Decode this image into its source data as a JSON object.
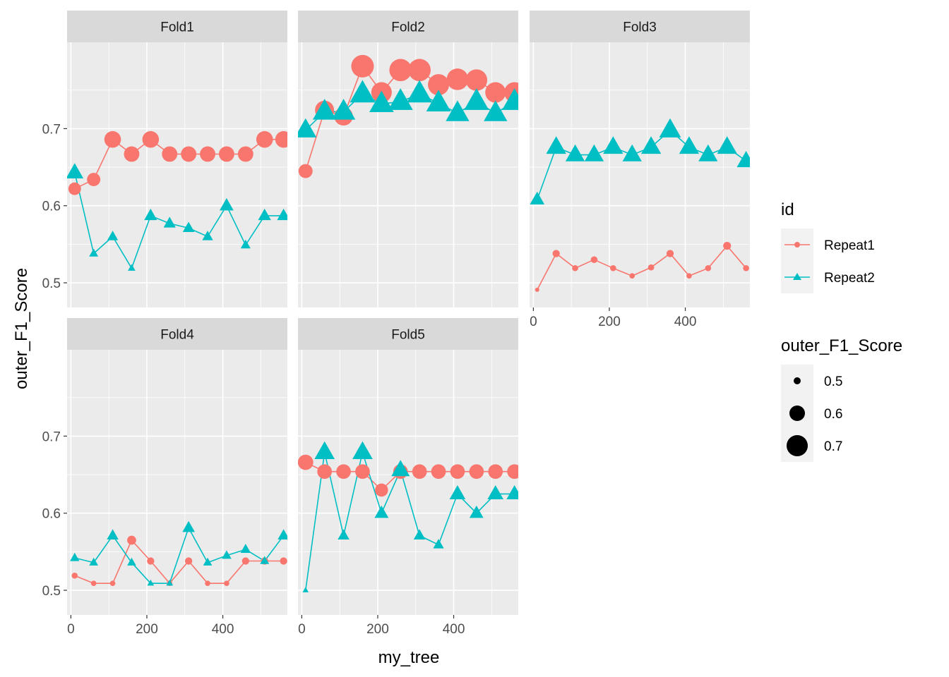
{
  "chart_data": {
    "type": "line",
    "xlabel": "my_tree",
    "ylabel": "outer_F1_Score",
    "xlim": [
      -10,
      570
    ],
    "ylim": [
      0.468,
      0.812
    ],
    "x_ticks": [
      0,
      200,
      400
    ],
    "y_ticks": [
      0.5,
      0.6,
      0.7
    ],
    "x_tick_labels": [
      "0",
      "200",
      "400"
    ],
    "y_tick_labels": [
      "0.5",
      "0.6",
      "0.7"
    ],
    "x": [
      10,
      60,
      110,
      160,
      210,
      260,
      310,
      360,
      410,
      460,
      510,
      560
    ],
    "grid": true,
    "legend": {
      "position": "right",
      "color_title": "id",
      "size_title": "outer_F1_Score",
      "size_breaks": [
        0.5,
        0.6,
        0.7
      ],
      "size_labels": [
        "0.5",
        "0.6",
        "0.7"
      ]
    },
    "series_styles": [
      {
        "name": "Repeat1",
        "color": "#F8766D",
        "shape": "circle"
      },
      {
        "name": "Repeat2",
        "color": "#00BFC4",
        "shape": "triangle"
      }
    ],
    "panels": [
      {
        "label": "Fold1",
        "series": [
          {
            "name": "Repeat1",
            "values": [
              0.622,
              0.634,
              0.686,
              0.667,
              0.686,
              0.667,
              0.667,
              0.667,
              0.667,
              0.667,
              0.686,
              0.686
            ]
          },
          {
            "name": "Repeat2",
            "values": [
              0.643,
              0.538,
              0.56,
              0.519,
              0.587,
              0.577,
              0.571,
              0.56,
              0.6,
              0.549,
              0.587,
              0.587
            ]
          }
        ]
      },
      {
        "label": "Fold2",
        "series": [
          {
            "name": "Repeat1",
            "values": [
              0.645,
              0.724,
              0.716,
              0.781,
              0.747,
              0.776,
              0.776,
              0.757,
              0.764,
              0.763,
              0.747,
              0.747
            ]
          },
          {
            "name": "Repeat2",
            "values": [
              0.698,
              0.722,
              0.722,
              0.745,
              0.732,
              0.735,
              0.745,
              0.733,
              0.72,
              0.735,
              0.72,
              0.735
            ]
          }
        ]
      },
      {
        "label": "Fold3",
        "series": [
          {
            "name": "Repeat1",
            "values": [
              0.491,
              0.538,
              0.519,
              0.53,
              0.519,
              0.509,
              0.52,
              0.538,
              0.509,
              0.519,
              0.548,
              0.519
            ]
          },
          {
            "name": "Repeat2",
            "values": [
              0.608,
              0.676,
              0.666,
              0.666,
              0.676,
              0.666,
              0.676,
              0.698,
              0.676,
              0.666,
              0.676,
              0.658
            ]
          }
        ]
      },
      {
        "label": "Fold4",
        "series": [
          {
            "name": "Repeat1",
            "values": [
              0.519,
              0.509,
              0.509,
              0.565,
              0.538,
              0.509,
              0.538,
              0.509,
              0.509,
              0.538,
              0.538,
              0.538
            ]
          },
          {
            "name": "Repeat2",
            "values": [
              0.542,
              0.536,
              0.571,
              0.536,
              0.509,
              0.509,
              0.581,
              0.536,
              0.545,
              0.553,
              0.538,
              0.571
            ]
          }
        ]
      },
      {
        "label": "Fold5",
        "series": [
          {
            "name": "Repeat1",
            "values": [
              0.666,
              0.654,
              0.654,
              0.654,
              0.63,
              0.654,
              0.654,
              0.654,
              0.654,
              0.654,
              0.654,
              0.654
            ]
          },
          {
            "name": "Repeat2",
            "values": [
              0.5,
              0.679,
              0.571,
              0.679,
              0.6,
              0.656,
              0.571,
              0.559,
              0.625,
              0.6,
              0.625,
              0.625
            ]
          }
        ]
      }
    ]
  }
}
